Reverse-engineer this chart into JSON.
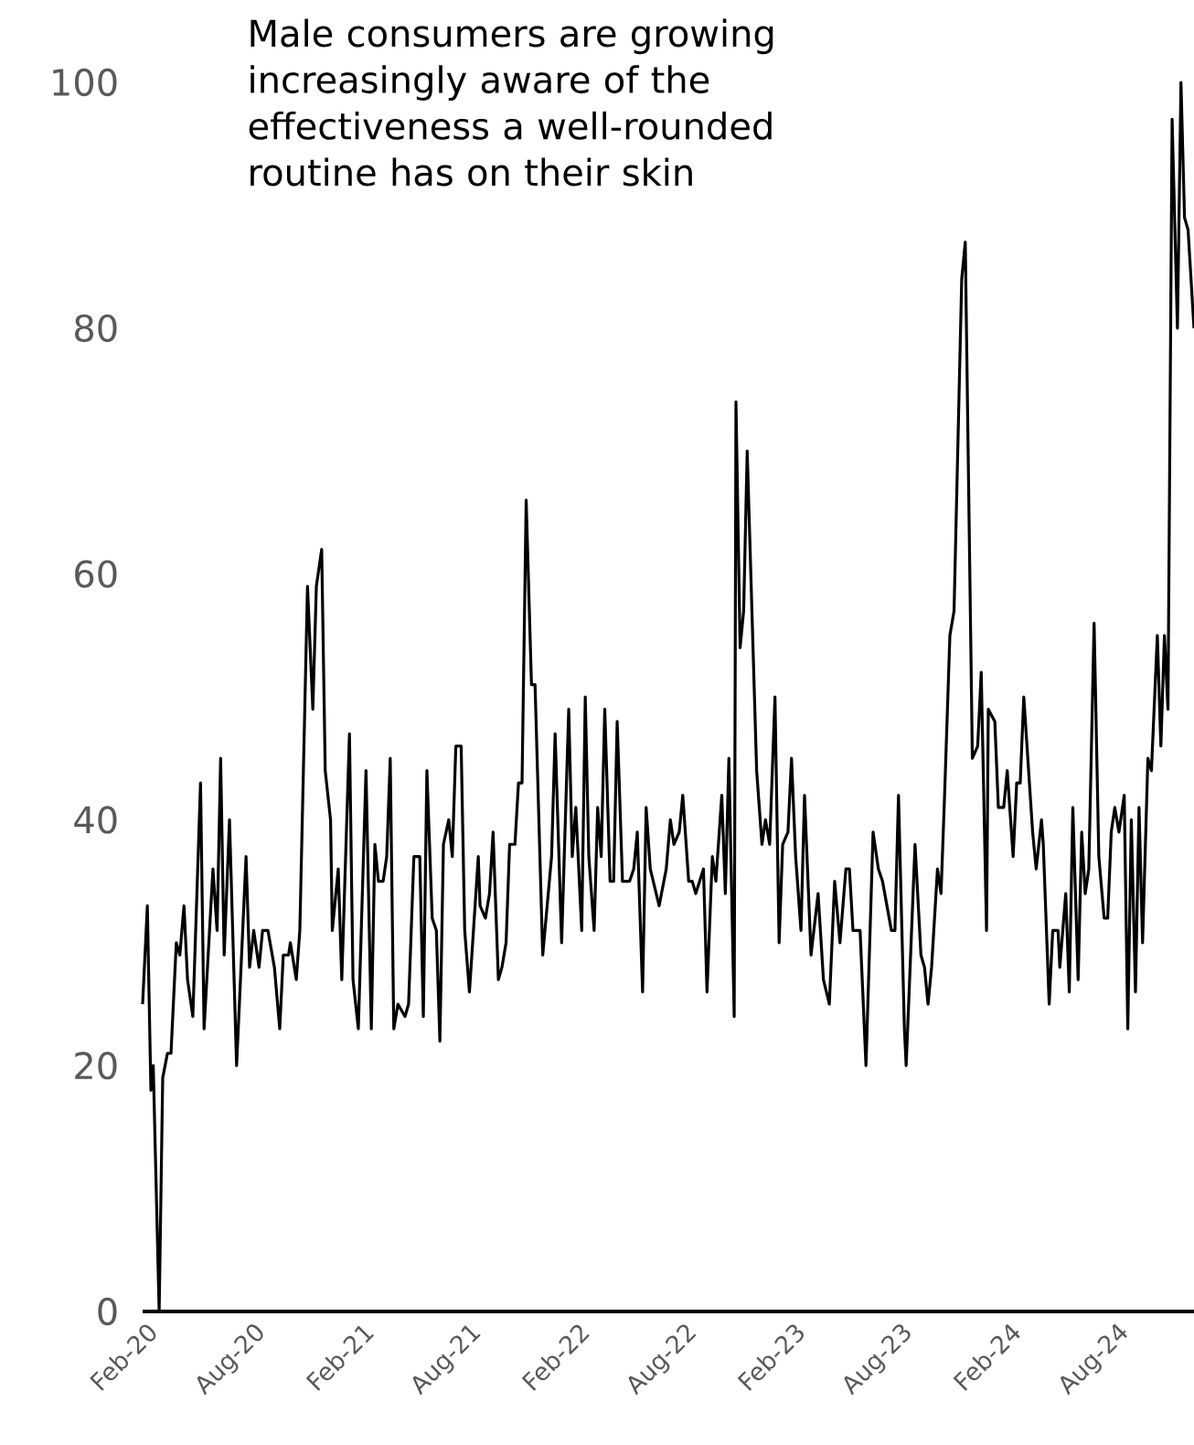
{
  "chart_data": {
    "type": "line",
    "title": "Male consumers are growing increasingly aware of the effectiveness a well-rounded routine has on their skin",
    "x": [
      "2020-01-26",
      "2020-02-03",
      "2020-02-09",
      "2020-02-13",
      "2020-02-23",
      "2020-02-29",
      "2020-03-08",
      "2020-03-14",
      "2020-03-23",
      "2020-03-29",
      "2020-04-05",
      "2020-04-11",
      "2020-04-20",
      "2020-05-03",
      "2020-05-09",
      "2020-05-24",
      "2020-05-31",
      "2020-06-06",
      "2020-06-12",
      "2020-06-21",
      "2020-07-03",
      "2020-07-19",
      "2020-07-25",
      "2020-08-01",
      "2020-08-10",
      "2020-08-16",
      "2020-08-25",
      "2020-09-05",
      "2020-09-14",
      "2020-09-20",
      "2020-09-29",
      "2020-10-02",
      "2020-10-12",
      "2020-10-18",
      "2020-10-31",
      "2020-11-09",
      "2020-11-15",
      "2020-11-24",
      "2020-11-30",
      "2020-12-09",
      "2020-12-12",
      "2020-12-22",
      "2020-12-28",
      "2021-01-10",
      "2021-01-16",
      "2021-01-25",
      "2021-02-07",
      "2021-02-16",
      "2021-02-22",
      "2021-02-28",
      "2021-03-08",
      "2021-03-14",
      "2021-03-20",
      "2021-03-26",
      "2021-04-02",
      "2021-04-14",
      "2021-04-20",
      "2021-04-29",
      "2021-05-09",
      "2021-05-15",
      "2021-05-21",
      "2021-05-30",
      "2021-06-06",
      "2021-06-12",
      "2021-06-18",
      "2021-06-27",
      "2021-07-03",
      "2021-07-09",
      "2021-07-18",
      "2021-07-24",
      "2021-08-01",
      "2021-08-16",
      "2021-08-19",
      "2021-08-28",
      "2021-09-04",
      "2021-09-10",
      "2021-09-19",
      "2021-09-25",
      "2021-10-02",
      "2021-10-08",
      "2021-10-17",
      "2021-10-23",
      "2021-10-29",
      "2021-11-05",
      "2021-11-14",
      "2021-11-20",
      "2021-12-03",
      "2021-12-18",
      "2021-12-24",
      "2022-01-04",
      "2022-01-16",
      "2022-01-22",
      "2022-01-28",
      "2022-02-07",
      "2022-02-13",
      "2022-02-19",
      "2022-02-28",
      "2022-03-06",
      "2022-03-12",
      "2022-03-18",
      "2022-03-27",
      "2022-04-02",
      "2022-04-08",
      "2022-04-17",
      "2022-04-29",
      "2022-05-06",
      "2022-05-12",
      "2022-05-21",
      "2022-05-27",
      "2022-06-03",
      "2022-06-18",
      "2022-06-30",
      "2022-07-07",
      "2022-07-13",
      "2022-07-22",
      "2022-07-28",
      "2022-08-07",
      "2022-08-13",
      "2022-08-19",
      "2022-09-01",
      "2022-09-07",
      "2022-09-16",
      "2022-09-22",
      "2022-10-02",
      "2022-10-08",
      "2022-10-14",
      "2022-10-23",
      "2022-10-26",
      "2022-11-02",
      "2022-11-08",
      "2022-11-14",
      "2022-11-30",
      "2022-12-09",
      "2022-12-15",
      "2022-12-22",
      "2022-12-31",
      "2023-01-07",
      "2023-01-13",
      "2023-01-22",
      "2023-01-28",
      "2023-02-04",
      "2023-02-13",
      "2023-02-19",
      "2023-03-02",
      "2023-03-14",
      "2023-03-23",
      "2023-04-02",
      "2023-04-11",
      "2023-04-20",
      "2023-04-30",
      "2023-05-06",
      "2023-05-12",
      "2023-05-24",
      "2023-06-03",
      "2023-06-15",
      "2023-06-24",
      "2023-07-01",
      "2023-07-16",
      "2023-07-22",
      "2023-07-28",
      "2023-08-07",
      "2023-08-10",
      "2023-08-25",
      "2023-09-04",
      "2023-09-10",
      "2023-09-16",
      "2023-09-22",
      "2023-10-02",
      "2023-10-08",
      "2023-10-14",
      "2023-10-23",
      "2023-10-30",
      "2023-11-12",
      "2023-11-18",
      "2023-11-30",
      "2023-12-09",
      "2023-12-15",
      "2023-12-24",
      "2023-12-27",
      "2024-01-07",
      "2024-01-13",
      "2024-01-22",
      "2024-01-28",
      "2024-02-07",
      "2024-02-13",
      "2024-02-19",
      "2024-02-25",
      "2024-03-11",
      "2024-03-17",
      "2024-03-26",
      "2024-03-29",
      "2024-04-08",
      "2024-04-14",
      "2024-04-23",
      "2024-04-26",
      "2024-05-06",
      "2024-05-12",
      "2024-05-18",
      "2024-05-27",
      "2024-06-02",
      "2024-06-08",
      "2024-06-14",
      "2024-06-23",
      "2024-07-01",
      "2024-07-10",
      "2024-07-16",
      "2024-07-22",
      "2024-07-28",
      "2024-08-04",
      "2024-08-13",
      "2024-08-19",
      "2024-08-25",
      "2024-09-01",
      "2024-09-07",
      "2024-09-13",
      "2024-09-22",
      "2024-09-28",
      "2024-10-08",
      "2024-10-14",
      "2024-10-20",
      "2024-10-26",
      "2024-11-02",
      "2024-11-11",
      "2024-11-17",
      "2024-11-23",
      "2024-11-29",
      "2024-12-09"
    ],
    "values": [
      25,
      33,
      18,
      20,
      0,
      19,
      21,
      21,
      30,
      29,
      33,
      27,
      24,
      43,
      23,
      36,
      31,
      45,
      29,
      40,
      20,
      37,
      28,
      31,
      28,
      31,
      31,
      28,
      23,
      29,
      29,
      30,
      27,
      31,
      59,
      49,
      59,
      62,
      44,
      40,
      31,
      36,
      27,
      47,
      27,
      23,
      44,
      23,
      38,
      35,
      35,
      37,
      45,
      23,
      25,
      24,
      25,
      37,
      37,
      24,
      44,
      32,
      31,
      22,
      38,
      40,
      37,
      46,
      46,
      31,
      26,
      37,
      33,
      32,
      34,
      39,
      27,
      28,
      30,
      38,
      38,
      43,
      43,
      66,
      51,
      51,
      29,
      37,
      47,
      30,
      49,
      37,
      41,
      31,
      50,
      37,
      31,
      41,
      37,
      49,
      35,
      35,
      48,
      35,
      35,
      36,
      39,
      26,
      41,
      36,
      33,
      36,
      40,
      38,
      39,
      42,
      35,
      35,
      34,
      36,
      26,
      37,
      35,
      42,
      34,
      45,
      24,
      74,
      54,
      57,
      70,
      44,
      38,
      40,
      38,
      50,
      30,
      38,
      39,
      45,
      37,
      31,
      42,
      29,
      34,
      27,
      25,
      35,
      30,
      36,
      36,
      31,
      31,
      20,
      39,
      36,
      35,
      31,
      31,
      42,
      23,
      20,
      38,
      29,
      28,
      25,
      28,
      36,
      34,
      42,
      55,
      57,
      84,
      87,
      45,
      46,
      52,
      31,
      49,
      48,
      41,
      41,
      44,
      37,
      43,
      43,
      50,
      39,
      36,
      40,
      38,
      25,
      31,
      31,
      28,
      34,
      26,
      41,
      27,
      39,
      34,
      36,
      56,
      37,
      32,
      32,
      39,
      41,
      39,
      42,
      23,
      40,
      26,
      41,
      30,
      45,
      44,
      55,
      46,
      55,
      49,
      97,
      80,
      100,
      89,
      88,
      80
    ],
    "color": "#000000",
    "line_style": "solid",
    "xlim": [
      "2020-01-26",
      "2024-12-09"
    ],
    "xticks": [
      {
        "value": "2020-02-01",
        "label": "Feb-20"
      },
      {
        "value": "2020-08-01",
        "label": "Aug-20"
      },
      {
        "value": "2021-02-01",
        "label": "Feb-21"
      },
      {
        "value": "2021-08-01",
        "label": "Aug-21"
      },
      {
        "value": "2022-02-01",
        "label": "Feb-22"
      },
      {
        "value": "2022-08-01",
        "label": "Aug-22"
      },
      {
        "value": "2023-02-01",
        "label": "Feb-23"
      },
      {
        "value": "2023-08-01",
        "label": "Aug-23"
      },
      {
        "value": "2024-02-01",
        "label": "Feb-24"
      },
      {
        "value": "2024-08-01",
        "label": "Aug-24"
      }
    ],
    "ylim": [
      0,
      100
    ],
    "yticks": [
      0,
      20,
      40,
      60,
      80,
      100
    ]
  }
}
